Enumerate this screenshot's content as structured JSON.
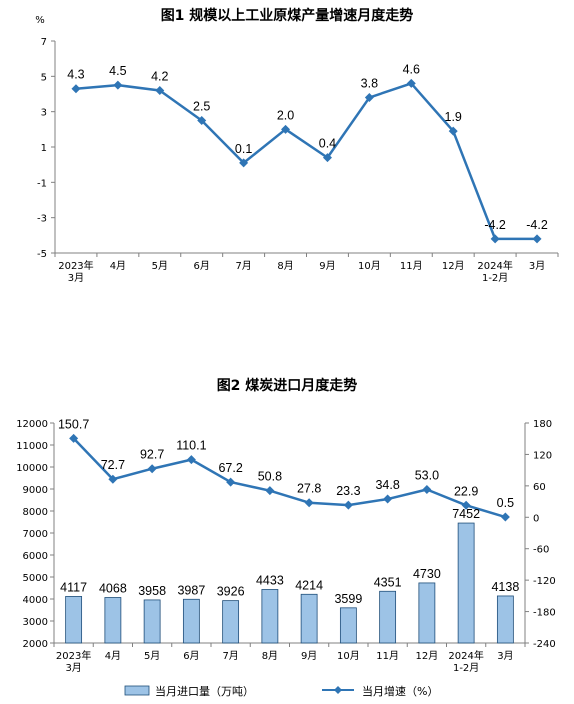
{
  "chart_data": [
    {
      "type": "line",
      "title": "图1  规模以上工业原煤产量增速月度走势",
      "ylabel": "%",
      "ylim": [
        -5,
        7
      ],
      "yticks": [
        7,
        5,
        3,
        1,
        -1,
        -3,
        -5
      ],
      "categories": [
        "2023年\n3月",
        "4月",
        "5月",
        "6月",
        "7月",
        "8月",
        "9月",
        "10月",
        "11月",
        "12月",
        "2024年\n1-2月",
        "3月"
      ],
      "series": [
        {
          "values": [
            4.3,
            4.5,
            4.2,
            2.5,
            0.1,
            2.0,
            0.4,
            3.8,
            4.6,
            1.9,
            -4.2,
            -4.2
          ],
          "labels": [
            "4.3",
            "4.5",
            "4.2",
            "2.5",
            "0.1",
            "2.0",
            "0.4",
            "3.8",
            "4.6",
            "1.9",
            "-4.2",
            "-4.2"
          ],
          "color": "#2f75b5"
        }
      ],
      "grid": false
    },
    {
      "type": "bar",
      "title": "图2  煤炭进口月度走势",
      "categories": [
        "2023年\n3月",
        "4月",
        "5月",
        "6月",
        "7月",
        "8月",
        "9月",
        "10月",
        "11月",
        "12月",
        "2024年\n1-2月",
        "3月"
      ],
      "ylim": [
        2000,
        12000
      ],
      "yticks": [
        12000,
        11000,
        10000,
        9000,
        8000,
        7000,
        6000,
        5000,
        4000,
        3000,
        2000
      ],
      "y2lim": [
        -240,
        180
      ],
      "y2ticks": [
        180,
        120,
        60,
        0,
        -60,
        -120,
        -180,
        -240
      ],
      "series": [
        {
          "name": "当月进口量（万吨）",
          "type": "bar",
          "axis": "left",
          "values": [
            4117,
            4068,
            3958,
            3987,
            3926,
            4433,
            4214,
            3599,
            4351,
            4730,
            7452,
            4138
          ],
          "fill": "#9dc3e6",
          "stroke": "#1f4e79"
        },
        {
          "name": "当月增速（%）",
          "type": "line",
          "axis": "right",
          "values": [
            150.7,
            72.7,
            92.7,
            110.1,
            67.2,
            50.8,
            27.8,
            23.3,
            34.8,
            53.0,
            22.9,
            0.5
          ],
          "labels": [
            "150.7",
            "72.7",
            "92.7",
            "110.1",
            "67.2",
            "50.8",
            "27.8",
            "23.3",
            "34.8",
            "53.0",
            "22.9",
            "0.5"
          ],
          "color": "#2f75b5"
        }
      ],
      "legend": "bottom",
      "grid": false
    }
  ]
}
